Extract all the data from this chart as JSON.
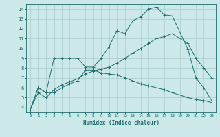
{
  "bg_color": "#cce8e8",
  "line_color": "#1a6e6e",
  "grid_color": "#aacccc",
  "xlabel": "Humidex (Indice chaleur)",
  "xlim": [
    -0.5,
    23.5
  ],
  "ylim": [
    3.5,
    14.5
  ],
  "yticks": [
    4,
    5,
    6,
    7,
    8,
    9,
    10,
    11,
    12,
    13,
    14
  ],
  "xticks": [
    0,
    1,
    2,
    3,
    4,
    5,
    6,
    7,
    8,
    9,
    10,
    11,
    12,
    13,
    14,
    15,
    16,
    17,
    18,
    19,
    20,
    21,
    22,
    23
  ],
  "curve1_x": [
    0,
    1,
    2,
    3,
    4,
    5,
    6,
    7,
    8,
    9,
    10,
    11,
    12,
    13,
    14,
    15,
    16,
    17,
    18,
    20,
    21,
    22,
    23
  ],
  "curve1_y": [
    3.8,
    6.0,
    5.5,
    9.0,
    9.0,
    9.0,
    9.0,
    8.1,
    8.1,
    9.0,
    10.2,
    11.8,
    11.5,
    12.8,
    13.2,
    14.0,
    14.2,
    13.4,
    13.3,
    9.9,
    7.0,
    6.0,
    4.7
  ],
  "curve2_x": [
    0,
    1,
    2,
    3,
    4,
    5,
    6,
    7,
    8,
    9,
    10,
    11,
    12,
    13,
    14,
    15,
    16,
    17,
    18,
    20,
    21,
    22,
    23
  ],
  "curve2_y": [
    3.8,
    5.5,
    5.0,
    5.8,
    6.3,
    6.6,
    6.9,
    7.4,
    7.7,
    7.9,
    8.1,
    8.5,
    9.0,
    9.5,
    10.0,
    10.5,
    11.0,
    11.2,
    11.5,
    10.5,
    9.0,
    8.0,
    7.0
  ],
  "curve3_x": [
    0,
    1,
    2,
    3,
    4,
    5,
    6,
    7,
    8,
    9,
    10,
    11,
    12,
    13,
    14,
    15,
    16,
    17,
    18,
    20,
    21,
    22,
    23
  ],
  "curve3_y": [
    3.8,
    6.0,
    5.5,
    5.5,
    6.0,
    6.4,
    6.7,
    7.8,
    7.8,
    7.5,
    7.4,
    7.3,
    7.0,
    6.7,
    6.4,
    6.2,
    6.0,
    5.8,
    5.5,
    5.0,
    4.8,
    4.7,
    4.5
  ]
}
